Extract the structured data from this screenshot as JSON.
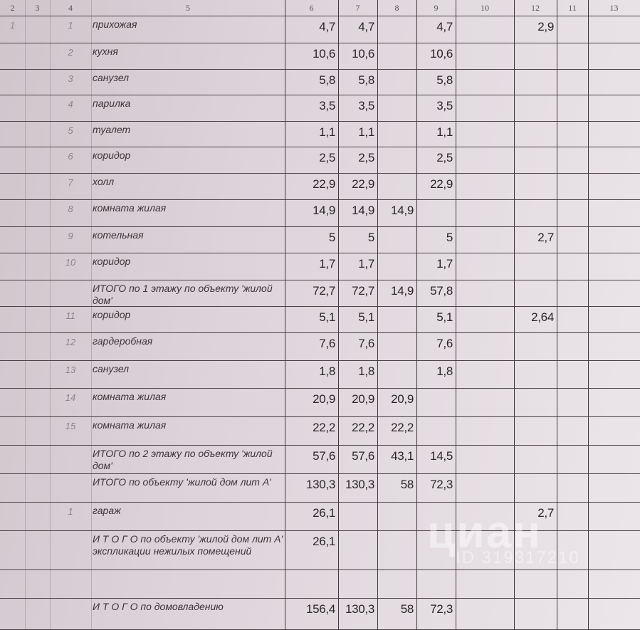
{
  "header": [
    "2",
    "3",
    "4",
    "5",
    "6",
    "7",
    "8",
    "9",
    "10",
    "12",
    "11",
    "13"
  ],
  "rows": [
    {
      "a": "1",
      "b": "1",
      "name": "прихожая",
      "v": [
        "4,7",
        "4,7",
        "",
        "4,7",
        "",
        "2,9",
        "",
        ""
      ]
    },
    {
      "a": "",
      "b": "2",
      "name": "кухня",
      "v": [
        "10,6",
        "10,6",
        "",
        "10,6",
        "",
        "",
        "",
        ""
      ]
    },
    {
      "a": "",
      "b": "3",
      "name": "санузел",
      "v": [
        "5,8",
        "5,8",
        "",
        "5,8",
        "",
        "",
        "",
        ""
      ]
    },
    {
      "a": "",
      "b": "4",
      "name": "парилка",
      "v": [
        "3,5",
        "3,5",
        "",
        "3,5",
        "",
        "",
        "",
        ""
      ]
    },
    {
      "a": "",
      "b": "5",
      "name": "туалет",
      "v": [
        "1,1",
        "1,1",
        "",
        "1,1",
        "",
        "",
        "",
        ""
      ]
    },
    {
      "a": "",
      "b": "6",
      "name": "коридор",
      "v": [
        "2,5",
        "2,5",
        "",
        "2,5",
        "",
        "",
        "",
        ""
      ]
    },
    {
      "a": "",
      "b": "7",
      "name": "холл",
      "v": [
        "22,9",
        "22,9",
        "",
        "22,9",
        "",
        "",
        "",
        ""
      ]
    },
    {
      "a": "",
      "b": "8",
      "name": "комната жилая",
      "v": [
        "14,9",
        "14,9",
        "14,9",
        "",
        "",
        "",
        "",
        ""
      ]
    },
    {
      "a": "",
      "b": "9",
      "name": "котельная",
      "v": [
        "5",
        "5",
        "",
        "5",
        "",
        "2,7",
        "",
        ""
      ]
    },
    {
      "a": "",
      "b": "10",
      "name": "коридор",
      "v": [
        "1,7",
        "1,7",
        "",
        "1,7",
        "",
        "",
        "",
        ""
      ]
    },
    {
      "a": "",
      "b": "",
      "name": "ИТОГО по 1 этажу  по объекту 'жилой дом'",
      "v": [
        "72,7",
        "72,7",
        "14,9",
        "57,8",
        "",
        "",
        "",
        ""
      ]
    },
    {
      "a": "",
      "b": "11",
      "name": "коридор",
      "v": [
        "5,1",
        "5,1",
        "",
        "5,1",
        "",
        "2,64",
        "",
        ""
      ]
    },
    {
      "a": "",
      "b": "12",
      "name": "гардеробная",
      "v": [
        "7,6",
        "7,6",
        "",
        "7,6",
        "",
        "",
        "",
        ""
      ]
    },
    {
      "a": "",
      "b": "13",
      "name": "санузел",
      "v": [
        "1,8",
        "1,8",
        "",
        "1,8",
        "",
        "",
        "",
        ""
      ]
    },
    {
      "a": "",
      "b": "14",
      "name": "комната жилая",
      "v": [
        "20,9",
        "20,9",
        "20,9",
        "",
        "",
        "",
        "",
        ""
      ]
    },
    {
      "a": "",
      "b": "15",
      "name": "комната жилая",
      "v": [
        "22,2",
        "22,2",
        "22,2",
        "",
        "",
        "",
        "",
        ""
      ]
    },
    {
      "a": "",
      "b": "",
      "name": "ИТОГО по 2 этажу  по объекту 'жилой дом'",
      "v": [
        "57,6",
        "57,6",
        "43,1",
        "14,5",
        "",
        "",
        "",
        ""
      ]
    },
    {
      "a": "",
      "b": "",
      "name": "ИТОГО по объекту 'жилой дом лит А'",
      "v": [
        "130,3",
        "130,3",
        "58",
        "72,3",
        "",
        "",
        "",
        ""
      ]
    },
    {
      "a": "",
      "b": "1",
      "name": "гараж",
      "v": [
        "26,1",
        "",
        "",
        "",
        "",
        "2,7",
        "",
        ""
      ]
    },
    {
      "a": "",
      "b": "",
      "name": "И Т О Г О по объекту 'жилой дом лит А' экспликации нежилых помещений",
      "v": [
        "26,1",
        "",
        "",
        "",
        "",
        "",
        "",
        ""
      ]
    },
    {
      "a": "",
      "b": "",
      "name": "",
      "v": [
        "",
        "",
        "",
        "",
        "",
        "",
        "",
        ""
      ]
    },
    {
      "a": "",
      "b": "",
      "name": "И Т О Г О по домовладению",
      "v": [
        "156,4",
        "130,3",
        "58",
        "72,3",
        "",
        "",
        "",
        ""
      ]
    }
  ],
  "watermark": {
    "logo": "циан",
    "id": "ID 319317210"
  },
  "colors": {
    "paper": "#dbd3d9",
    "ink": "#2a2628",
    "grid": "#3f393d"
  }
}
